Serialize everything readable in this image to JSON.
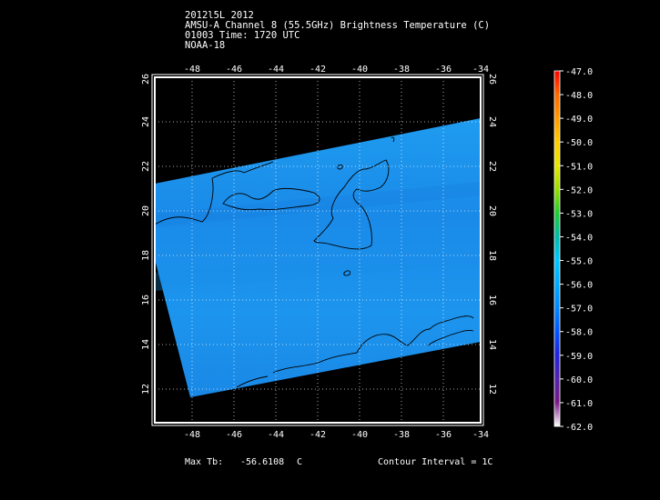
{
  "header": {
    "line1": "2012l5L 2012",
    "line2": "AMSU-A Channel 8 (55.5GHz) Brightness Temperature (C)",
    "line3": "01003 Time: 1720 UTC",
    "line4": "NOAA-18"
  },
  "axes": {
    "lon_ticks": [
      "-48",
      "-46",
      "-44",
      "-42",
      "-40",
      "-38",
      "-36",
      "-34"
    ],
    "lat_ticks": [
      "12",
      "14",
      "16",
      "18",
      "20",
      "22",
      "24",
      "26"
    ],
    "lon_range": [
      -50,
      -34
    ],
    "lat_range": [
      10,
      26
    ]
  },
  "colorbar": {
    "labels": [
      "-47.0",
      "-48.0",
      "-49.0",
      "-50.0",
      "-51.0",
      "-52.0",
      "-53.0",
      "-54.0",
      "-55.0",
      "-56.0",
      "-57.0",
      "-58.0",
      "-59.0",
      "-60.0",
      "-61.0",
      "-62.0"
    ],
    "colors": [
      "#ff0000",
      "#ff6a00",
      "#ff9900",
      "#ffcc00",
      "#e6e600",
      "#99dd00",
      "#22cc33",
      "#00bbaa",
      "#00c8ff",
      "#00aaff",
      "#0088ff",
      "#0055ff",
      "#2222dd",
      "#5522aa",
      "#7a1a88",
      "#ffffff"
    ]
  },
  "footer": {
    "max_label": "Max Tb:",
    "max_value": "-56.6108",
    "max_unit": "C",
    "contour": "Contour Interval = 1C"
  }
}
